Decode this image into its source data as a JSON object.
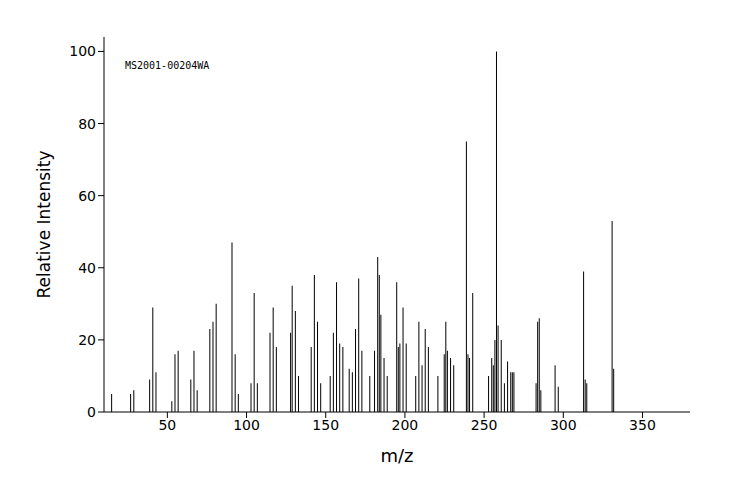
{
  "chart_data": {
    "type": "bar",
    "annotation": "MS2001-00204WA",
    "x_label": "m/z",
    "y_label": "Relative Intensity",
    "x": [
      15,
      27,
      29,
      39,
      41,
      43,
      53,
      55,
      57,
      65,
      67,
      69,
      77,
      79,
      81,
      91,
      93,
      95,
      103,
      105,
      107,
      115,
      117,
      119,
      128,
      129,
      131,
      133,
      141,
      143,
      145,
      147,
      153,
      155,
      157,
      159,
      161,
      165,
      167,
      169,
      171,
      173,
      178,
      181,
      183,
      184,
      185,
      187,
      189,
      195,
      196,
      197,
      199,
      201,
      207,
      209,
      211,
      213,
      215,
      221,
      225,
      226,
      227,
      229,
      231,
      239,
      240,
      241,
      243,
      253,
      255,
      256,
      257,
      258,
      259,
      261,
      263,
      265,
      267,
      268,
      269,
      283,
      284,
      285,
      286,
      295,
      297,
      313,
      314,
      315,
      331,
      332
    ],
    "values": [
      5,
      5,
      6,
      9,
      29,
      11,
      3,
      16,
      17,
      9,
      17,
      6,
      23,
      25,
      30,
      47,
      16,
      5,
      8,
      33,
      8,
      22,
      29,
      18,
      22,
      35,
      28,
      10,
      18,
      38,
      25,
      8,
      10,
      22,
      36,
      19,
      18,
      12,
      11,
      23,
      37,
      17,
      10,
      17,
      43,
      38,
      27,
      15,
      10,
      36,
      18,
      19,
      29,
      19,
      10,
      25,
      13,
      23,
      18,
      10,
      16,
      25,
      17,
      15,
      13,
      75,
      16,
      15,
      33,
      10,
      15,
      13,
      20,
      100,
      24,
      20,
      8,
      14,
      11,
      11,
      11,
      8,
      25,
      26,
      6,
      13,
      7,
      39,
      9,
      8,
      53,
      12
    ],
    "color": "#000000",
    "xlim": [
      10,
      380
    ],
    "xticks": [
      50,
      100,
      150,
      200,
      250,
      300,
      350
    ],
    "ylim": [
      0,
      104
    ],
    "yticks": [
      0,
      20,
      40,
      60,
      80,
      100
    ],
    "grid": false
  }
}
